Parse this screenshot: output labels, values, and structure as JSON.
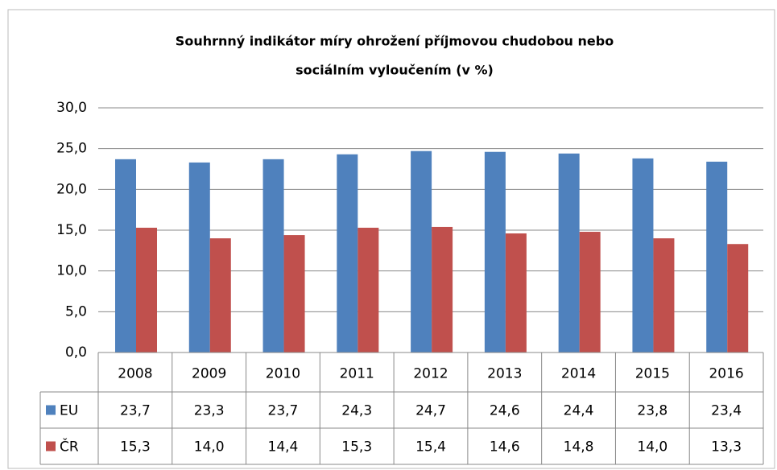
{
  "chart_data": {
    "type": "bar",
    "title_lines": [
      "Souhrnný indikátor  míry ohrožení příjmovou  chudobou nebo",
      "sociálním  vyloučením   (v  %)"
    ],
    "categories": [
      "2008",
      "2009",
      "2010",
      "2011",
      "2012",
      "2013",
      "2014",
      "2015",
      "2016"
    ],
    "series": [
      {
        "name": "EU",
        "color": "#4f81bd",
        "values": [
          23.7,
          23.3,
          23.7,
          24.3,
          24.7,
          24.6,
          24.4,
          23.8,
          23.4
        ],
        "value_labels": [
          "23,7",
          "23,3",
          "23,7",
          "24,3",
          "24,7",
          "24,6",
          "24,4",
          "23,8",
          "23,4"
        ]
      },
      {
        "name": "ČR",
        "color": "#c0504d",
        "values": [
          15.3,
          14.0,
          14.4,
          15.3,
          15.4,
          14.6,
          14.8,
          14.0,
          13.3
        ],
        "value_labels": [
          "15,3",
          "14,0",
          "14,4",
          "15,3",
          "15,4",
          "14,6",
          "14,8",
          "14,0",
          "13,3"
        ]
      }
    ],
    "ylim": [
      0,
      30
    ],
    "yticks": [
      {
        "value": 0,
        "label": "0,0"
      },
      {
        "value": 5,
        "label": "5,0"
      },
      {
        "value": 10,
        "label": "10,0"
      },
      {
        "value": 15,
        "label": "15,0"
      },
      {
        "value": 20,
        "label": "20,0"
      },
      {
        "value": 25,
        "label": "25,0"
      },
      {
        "value": 30,
        "label": "30,0"
      }
    ],
    "grid": true
  }
}
